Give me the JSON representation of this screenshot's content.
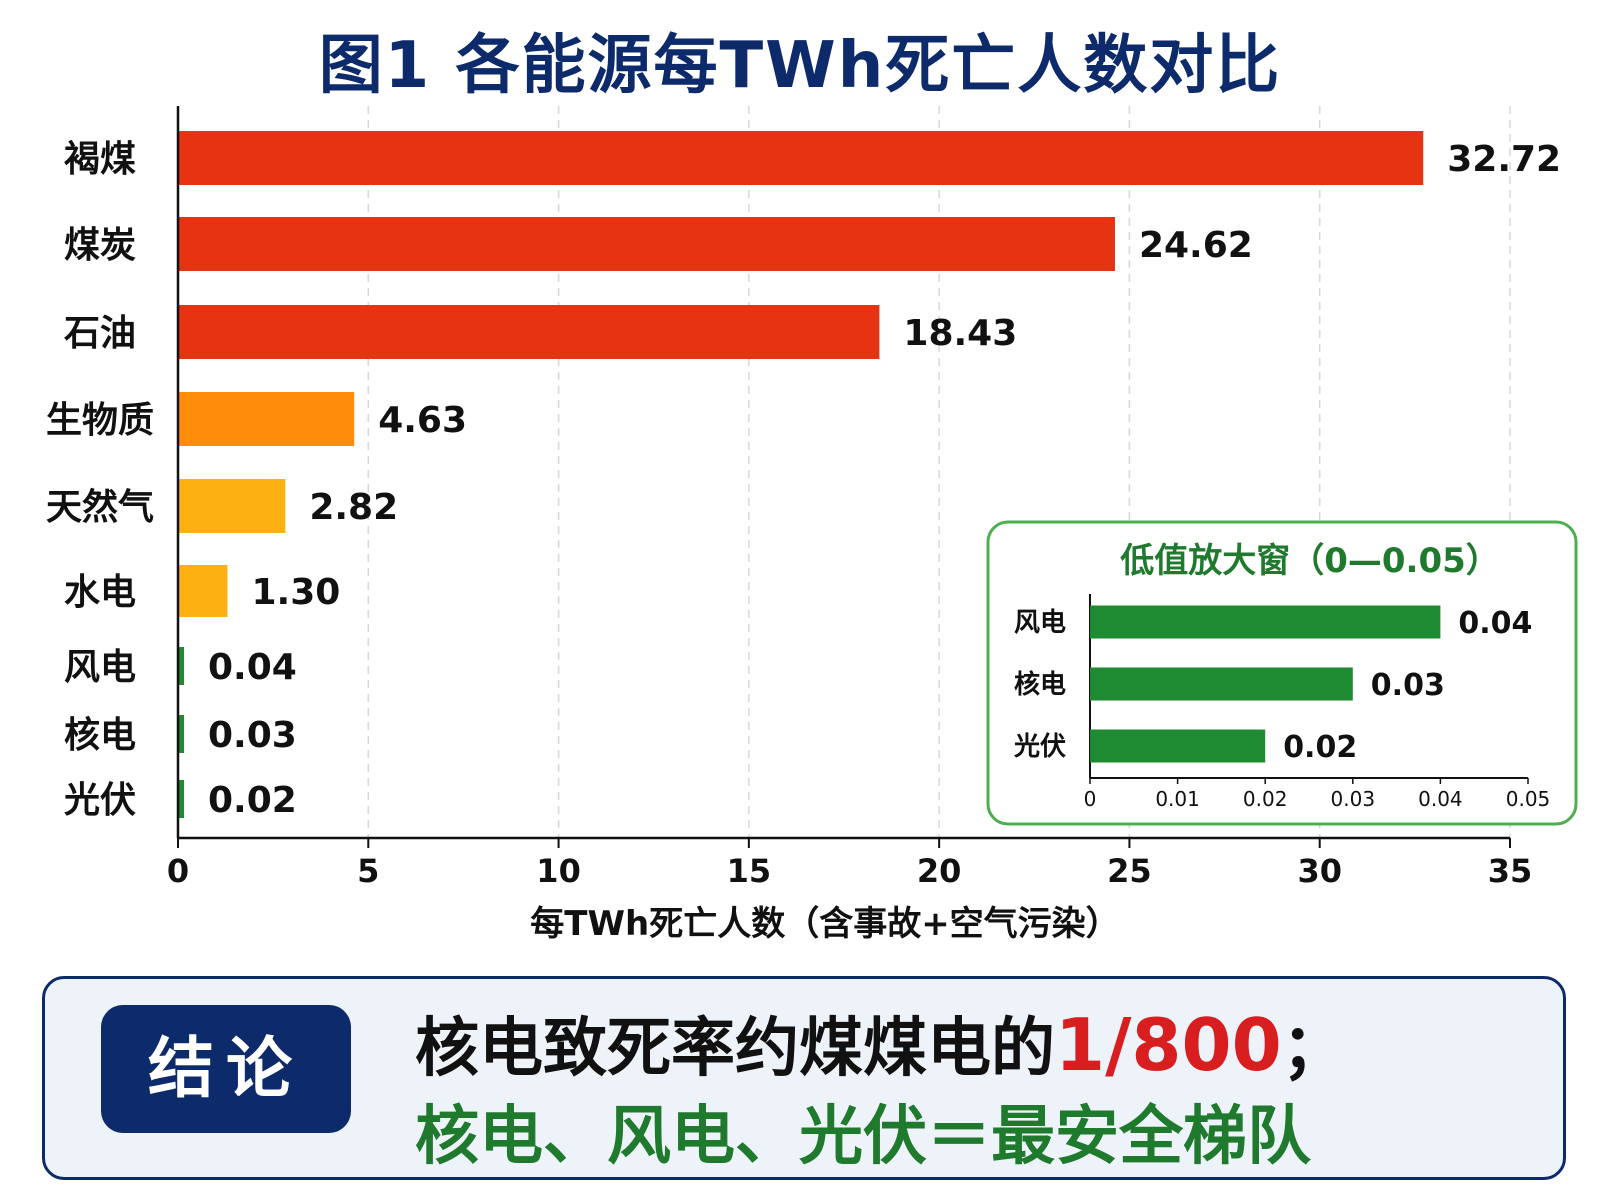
{
  "title": "图1  各能源每TWh死亡人数对比",
  "chart_data": [
    {
      "type": "bar",
      "orientation": "horizontal",
      "title": "图1  各能源每TWh死亡人数对比",
      "categories": [
        "褐煤",
        "煤炭",
        "石油",
        "生物质",
        "天然气",
        "水电",
        "风电",
        "核电",
        "光伏"
      ],
      "values": [
        32.72,
        24.62,
        18.43,
        4.63,
        2.82,
        1.3,
        0.04,
        0.03,
        0.02
      ],
      "value_labels": [
        "32.72",
        "24.62",
        "18.43",
        "4.63",
        "2.82",
        "1.30",
        "0.04",
        "0.03",
        "0.02"
      ],
      "colors": [
        "#e63312",
        "#e63312",
        "#e63312",
        "#ff8c0a",
        "#fdb012",
        "#fdb012",
        "#1e8a32",
        "#1e8a32",
        "#1e8a32"
      ],
      "xlabel": "每TWh死亡人数（含事故+空气污染）",
      "xlim": [
        0,
        35
      ],
      "xticks": [
        "0",
        "5",
        "10",
        "15",
        "20",
        "25",
        "30",
        "35"
      ],
      "grid": "vertical dashed"
    },
    {
      "type": "bar",
      "orientation": "horizontal",
      "title": "低值放大窗（0—0.05）",
      "categories": [
        "风电",
        "核电",
        "光伏"
      ],
      "values": [
        0.04,
        0.03,
        0.02
      ],
      "value_labels": [
        "0.04",
        "0.03",
        "0.02"
      ],
      "colors": [
        "#1e8a32",
        "#1e8a32",
        "#1e8a32"
      ],
      "xlim": [
        0,
        0.05
      ],
      "xticks": [
        "0",
        "0.01",
        "0.02",
        "0.03",
        "0.04",
        "0.05"
      ]
    }
  ],
  "conclusion": {
    "badge": "结论",
    "line1_prefix": "核电致死率约煤煤电的",
    "line1_highlight": "1/800",
    "line1_suffix": "；",
    "line2": "核电、风电、光伏＝最安全梯队"
  },
  "colors": {
    "title": "#0d2a6b",
    "highlight": "#d81e1e",
    "safe_green": "#1f7a2e",
    "inset_border": "#4caf50"
  }
}
